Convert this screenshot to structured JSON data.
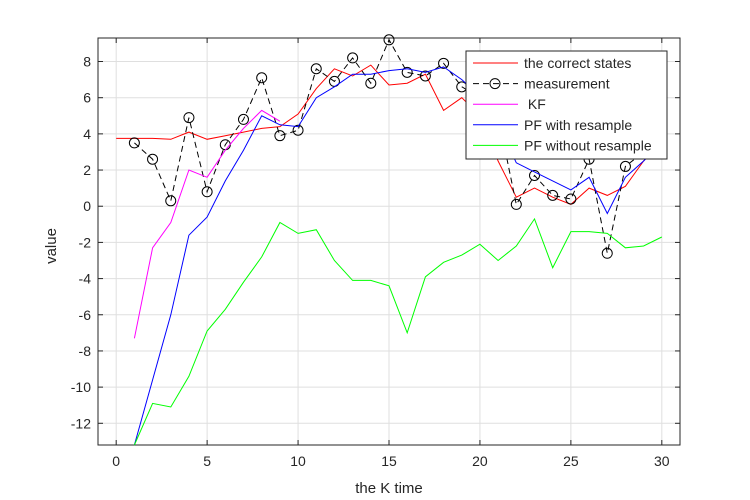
{
  "chart_data": {
    "type": "line",
    "xlabel": "the K time",
    "ylabel": "value",
    "xlim": [
      -1,
      31
    ],
    "ylim": [
      -13.2,
      9.3
    ],
    "xticks": [
      0,
      5,
      10,
      15,
      20,
      25,
      30
    ],
    "yticks": [
      -12,
      -10,
      -8,
      -6,
      -4,
      -2,
      0,
      2,
      4,
      6,
      8
    ],
    "grid": true,
    "legend_position": "top-right",
    "series": [
      {
        "name": "the correct states",
        "color": "#ff0000",
        "style": "solid",
        "x": [
          0,
          1,
          2,
          3,
          4,
          5,
          6,
          7,
          8,
          9,
          10,
          11,
          12,
          13,
          14,
          15,
          16,
          17,
          18,
          19,
          20,
          21,
          22,
          23,
          24,
          25,
          26,
          27,
          28,
          29,
          30
        ],
        "y": [
          3.75,
          3.75,
          3.75,
          3.7,
          4.1,
          3.7,
          3.9,
          4.1,
          4.3,
          4.4,
          5.1,
          6.5,
          7.6,
          7.2,
          7.8,
          6.7,
          6.8,
          7.3,
          5.3,
          6.0,
          5.0,
          2.5,
          0.5,
          1.0,
          0.5,
          0.1,
          1.0,
          0.6,
          1.1,
          2.5,
          3.6
        ]
      },
      {
        "name": "measurement",
        "color": "#000000",
        "style": "dashed-circle",
        "x": [
          1,
          2,
          3,
          4,
          5,
          6,
          7,
          8,
          9,
          10,
          11,
          12,
          13,
          14,
          15,
          16,
          17,
          18,
          19,
          20,
          21,
          22,
          23,
          24,
          25,
          26,
          27,
          28,
          29,
          30
        ],
        "y": [
          3.5,
          2.6,
          0.3,
          4.9,
          0.8,
          3.4,
          4.8,
          7.1,
          3.9,
          4.2,
          7.6,
          6.9,
          8.2,
          6.8,
          9.2,
          7.4,
          7.2,
          7.9,
          6.6,
          6.0,
          5.0,
          0.1,
          1.7,
          0.6,
          0.4,
          2.6,
          -2.6,
          2.2,
          3.0,
          3.6
        ]
      },
      {
        "name": " KF",
        "color": "#ff00ff",
        "style": "solid",
        "x": [
          1,
          2,
          3,
          4,
          5,
          6,
          7,
          8,
          9
        ],
        "y": [
          -7.3,
          -2.3,
          -0.9,
          2.0,
          1.6,
          3.1,
          4.3,
          5.3,
          4.7
        ]
      },
      {
        "name": "PF with resample",
        "color": "#0000ff",
        "style": "solid",
        "x": [
          1,
          2,
          3,
          4,
          5,
          6,
          7,
          8,
          9,
          10,
          11,
          12,
          13,
          14,
          15,
          16,
          17,
          18,
          19,
          20,
          21,
          22,
          23,
          24,
          25,
          26,
          27,
          28,
          29,
          30
        ],
        "y": [
          -13.2,
          -9.6,
          -6.0,
          -1.6,
          -0.6,
          1.4,
          3.1,
          5.0,
          4.5,
          4.4,
          6.0,
          6.6,
          7.3,
          7.3,
          7.5,
          7.6,
          7.4,
          7.7,
          7.0,
          6.1,
          4.6,
          2.4,
          1.9,
          1.4,
          0.9,
          1.6,
          -0.4,
          1.6,
          2.5,
          3.5
        ]
      },
      {
        "name": "PF without resample",
        "color": "#00ff00",
        "style": "solid",
        "x": [
          1,
          2,
          3,
          4,
          5,
          6,
          7,
          8,
          9,
          10,
          11,
          12,
          13,
          14,
          15,
          16,
          17,
          18,
          19,
          20,
          21,
          22,
          23,
          24,
          25,
          26,
          27,
          28,
          29,
          30
        ],
        "y": [
          -13.2,
          -10.9,
          -11.1,
          -9.4,
          -6.9,
          -5.7,
          -4.2,
          -2.8,
          -0.9,
          -1.5,
          -1.3,
          -3.0,
          -4.1,
          -4.1,
          -4.4,
          -7.0,
          -3.9,
          -3.1,
          -2.7,
          -2.1,
          -3.0,
          -2.2,
          -0.7,
          -3.4,
          -1.4,
          -1.4,
          -1.5,
          -2.3,
          -2.2,
          -1.7
        ]
      }
    ]
  }
}
